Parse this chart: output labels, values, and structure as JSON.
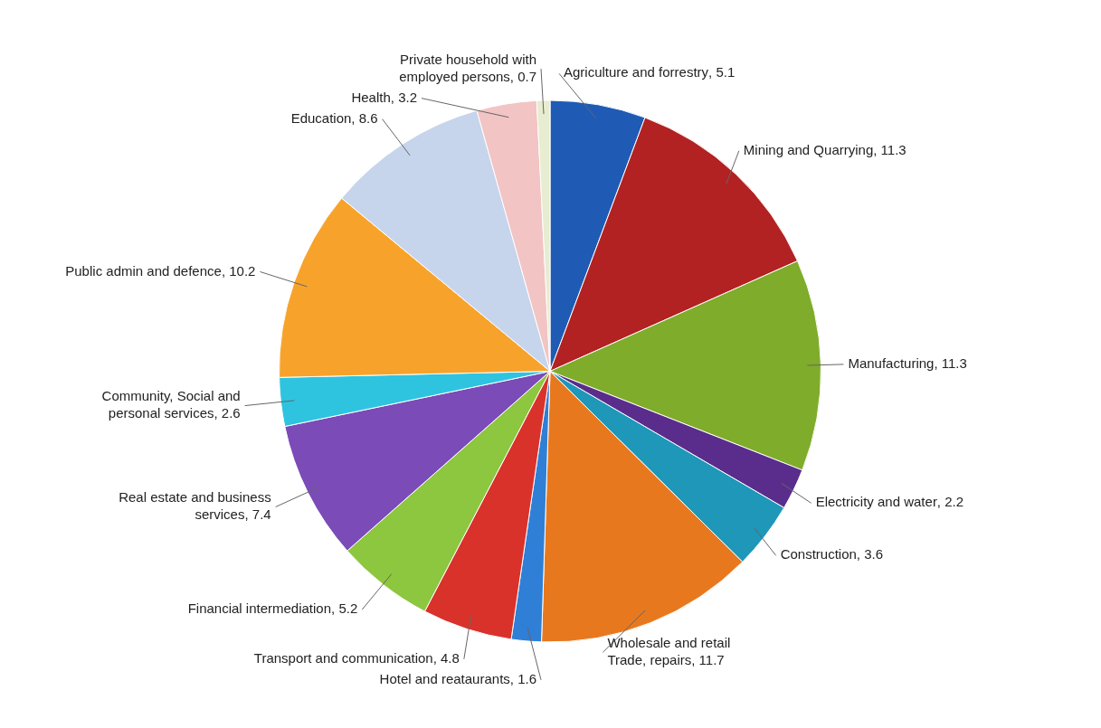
{
  "chart_data": {
    "type": "pie",
    "categories": [
      "Agriculture and forrestry",
      "Mining and Quarrying",
      "Manufacturing",
      "Electricity and water",
      "Construction",
      "Wholesale and retail Trade, repairs",
      "Hotel and reataurants",
      "Transport and communication",
      "Financial intermediation",
      "Real estate and business services",
      "Community, Social and personal services",
      "Public admin and defence",
      "Education",
      "Health",
      "Private household with employed persons"
    ],
    "values": [
      5.1,
      11.3,
      11.3,
      2.2,
      3.6,
      11.7,
      1.6,
      4.8,
      5.2,
      7.4,
      2.6,
      10.2,
      8.6,
      3.2,
      0.7
    ],
    "colors": [
      "#1f5bb5",
      "#b22222",
      "#7fac2a",
      "#5a2d8c",
      "#1e97b8",
      "#e8781e",
      "#2f7fd6",
      "#d9322b",
      "#8dc63f",
      "#7b4bb8",
      "#2ec4e0",
      "#f7a32b",
      "#c6d5ec",
      "#f2c4c4",
      "#e8ecd0"
    ],
    "value_labels": [
      ", 5.1",
      ", 11.3",
      ", 11.3",
      ", 2.2",
      ", 3.6",
      ", 11.7",
      ", 1.6",
      ", 4.8",
      ", 5.2",
      ", 7.4",
      ", 2.6",
      ", 10.2",
      ", 8.6",
      ", 3.2",
      ", 0.7"
    ],
    "legend": false
  }
}
